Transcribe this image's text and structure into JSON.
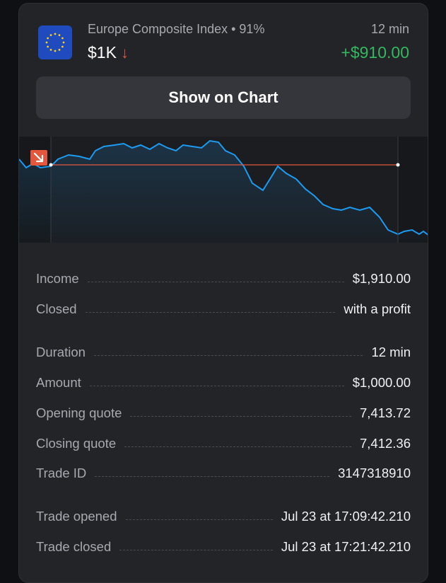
{
  "header": {
    "asset_name": "Europe Composite Index • 91%",
    "amount": "$1K",
    "direction_icon": "down-arrow-icon",
    "direction_glyph": "↓",
    "duration": "12 min",
    "profit": "+$910.00",
    "flag_icon": "eu-flag-icon"
  },
  "actions": {
    "show_on_chart_label": "Show on Chart"
  },
  "chart": {
    "line_color": "#1e9bf0",
    "open_line_color": "#e4573d",
    "marker_icon": "down-right-arrow-icon"
  },
  "details": [
    {
      "label": "Income",
      "value": "$1,910.00"
    },
    {
      "label": "Closed",
      "value": "with a profit"
    },
    {
      "label": "Duration",
      "value": "12 min"
    },
    {
      "label": "Amount",
      "value": "$1,000.00"
    },
    {
      "label": "Opening quote",
      "value": "7,413.72"
    },
    {
      "label": "Closing quote",
      "value": "7,412.36"
    },
    {
      "label": "Trade ID",
      "value": "3147318910"
    },
    {
      "label": "Trade opened",
      "value": "Jul 23 at 17:09:42.210"
    },
    {
      "label": "Trade closed",
      "value": "Jul 23 at 17:21:42.210"
    }
  ],
  "colors": {
    "profit": "#35b760",
    "loss_arrow": "#e4573d",
    "card_bg": "#232428"
  }
}
